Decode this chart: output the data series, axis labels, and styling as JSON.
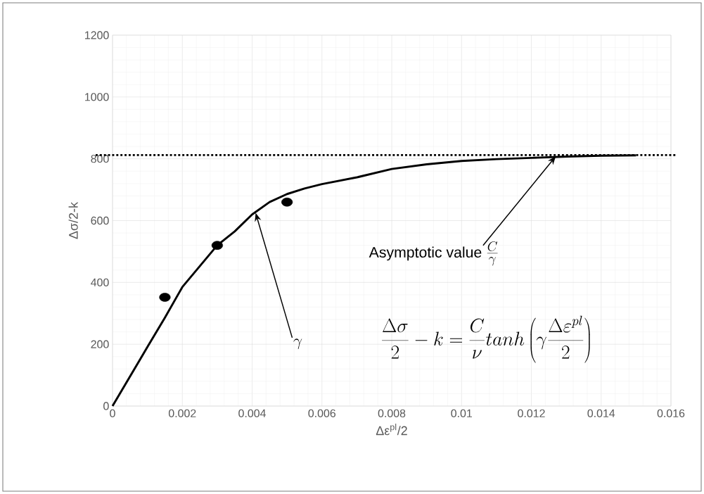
{
  "chart_data": {
    "type": "line",
    "xlabel": "Δε$^{pl}$/2",
    "ylabel": "Δσ/2-k",
    "xlim": [
      0,
      0.016
    ],
    "ylim": [
      0,
      1200
    ],
    "xticks": [
      0,
      0.002,
      0.004,
      0.006,
      0.008,
      0.01,
      0.012,
      0.014,
      0.016
    ],
    "yticks": [
      0,
      200,
      400,
      600,
      800,
      1000,
      1200
    ],
    "grid": true,
    "series": [
      {
        "color": "#000000",
        "marker": "none",
        "line_style": "solid",
        "x": [
          0,
          0.001,
          0.0015,
          0.002,
          0.003,
          0.0035,
          0.004,
          0.0045,
          0.005,
          0.0055,
          0.006,
          0.007,
          0.008,
          0.009,
          0.01,
          0.011,
          0.012,
          0.013,
          0.014,
          0.015
        ],
        "values": [
          0,
          191,
          286,
          385,
          520,
          565,
          620,
          660,
          686,
          704,
          718,
          740,
          767,
          782,
          793,
          799,
          803,
          807,
          810,
          811
        ]
      },
      {
        "type": "scatter",
        "color": "#000000",
        "marker": "circle",
        "x": [
          0.0015,
          0.003,
          0.005
        ],
        "values": [
          352,
          520,
          660
        ]
      }
    ],
    "ref_lines": [
      {
        "axis": "y",
        "value": 812,
        "line_style": "dotted",
        "color": "#000000"
      }
    ],
    "annotations": [
      {
        "text": "\\gamma",
        "x": 0.0041,
        "y": 625
      },
      {
        "text": "Asymptotic value",
        "x": 0.0127,
        "y": 808
      },
      "\\frac{C}{\\gamma}",
      "\\frac{\\Delta\\sigma}{2}-k=\\frac{C}{\\nu}tanh\\left(\\gamma\\frac{\\Delta\\varepsilon^{pl}}{2}\\right)"
    ]
  }
}
